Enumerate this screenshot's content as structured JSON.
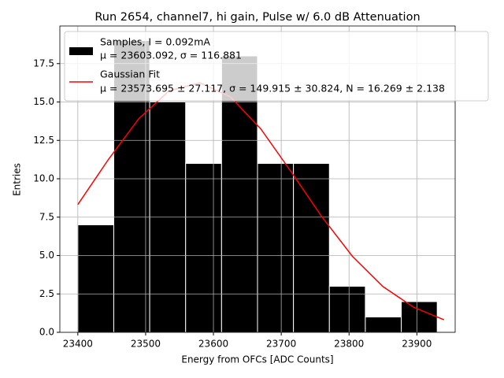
{
  "chart_data": {
    "type": "histogram",
    "title": "Run 2654, channel7, hi gain, Pulse w/ 6.0 dB Attenuation",
    "x_label": "Energy from OFCs [ADC Counts]",
    "y_label": "Entries",
    "bins": [
      23400,
      23453,
      23506,
      23559,
      23612,
      23665,
      23718,
      23771,
      23824,
      23877,
      23930
    ],
    "series": [
      {
        "name": "Samples, I = 0.092mA",
        "detail": "μ = 23603.092, σ = 116.881",
        "color": "#000000",
        "values": [
          7,
          19,
          15,
          11,
          18,
          11,
          11,
          3,
          1,
          2
        ]
      },
      {
        "name": "Gaussian Fit",
        "detail": "μ = 23573.695 ± 27.117, σ = 149.915 ± 30.824, N = 16.269 ± 2.138",
        "color": "#ff0000",
        "x": [
          23400,
          23445,
          23490,
          23535,
          23580,
          23625,
          23670,
          23715,
          23760,
          23805,
          23850,
          23895,
          23940
        ],
        "values": [
          8.32,
          11.25,
          13.92,
          15.74,
          16.25,
          15.34,
          13.24,
          10.43,
          7.52,
          4.95,
          2.98,
          1.64,
          0.82
        ]
      }
    ],
    "xlim": [
      23373.5,
      23956.5
    ],
    "xticks": [
      23400,
      23500,
      23600,
      23700,
      23800,
      23900
    ],
    "ylim": [
      0,
      19.95
    ],
    "yticks": [
      {
        "value": 0,
        "label": "0.0"
      },
      {
        "value": 2.5,
        "label": "2.5"
      },
      {
        "value": 5,
        "label": "5.0"
      },
      {
        "value": 7.5,
        "label": "7.5"
      },
      {
        "value": 10,
        "label": "10.0"
      },
      {
        "value": 12.5,
        "label": "12.5"
      },
      {
        "value": 15,
        "label": "15.0"
      },
      {
        "value": 17.5,
        "label": "17.5"
      }
    ],
    "grid": true,
    "legend": "upper left"
  }
}
